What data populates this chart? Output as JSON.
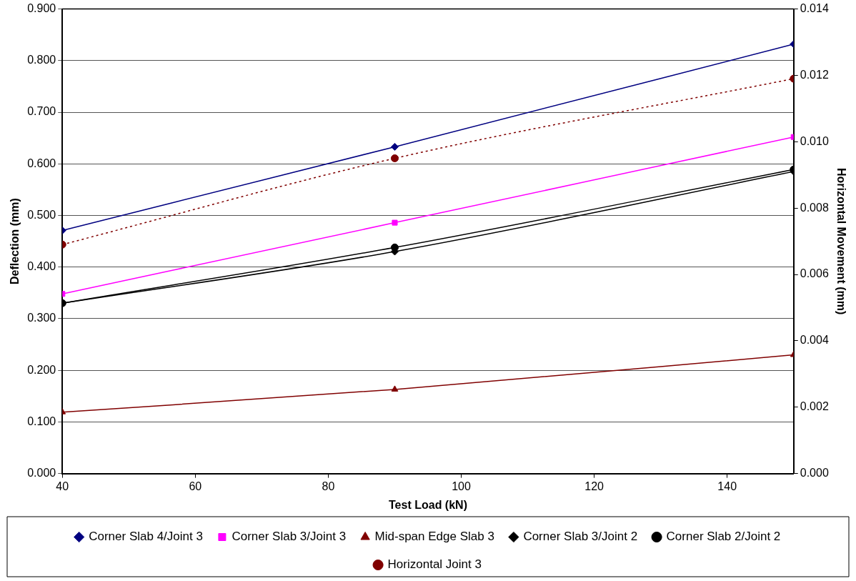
{
  "chart_data": {
    "type": "line",
    "xlabel": "Test Load (kN)",
    "ylabel": "Deflection (mm)",
    "y2label": "Horizontal Movement (mm)",
    "x": [
      40,
      90,
      150
    ],
    "xlim": [
      40,
      150
    ],
    "xticks": [
      40,
      60,
      80,
      100,
      120,
      140
    ],
    "ylim": [
      0,
      0.9
    ],
    "yticks": [
      {
        "value": 0,
        "label": "0.000"
      },
      {
        "value": 0.1,
        "label": "0.100"
      },
      {
        "value": 0.2,
        "label": "0.200"
      },
      {
        "value": 0.3,
        "label": "0.300"
      },
      {
        "value": 0.4,
        "label": "0.400"
      },
      {
        "value": 0.5,
        "label": "0.500"
      },
      {
        "value": 0.6,
        "label": "0.600"
      },
      {
        "value": 0.7,
        "label": "0.700"
      },
      {
        "value": 0.8,
        "label": "0.800"
      },
      {
        "value": 0.9,
        "label": "0.900"
      }
    ],
    "y2lim": [
      0,
      0.014
    ],
    "y2ticks": [
      {
        "value": 0,
        "label": "0.000"
      },
      {
        "value": 0.002,
        "label": "0.002"
      },
      {
        "value": 0.004,
        "label": "0.004"
      },
      {
        "value": 0.006,
        "label": "0.006"
      },
      {
        "value": 0.008,
        "label": "0.008"
      },
      {
        "value": 0.01,
        "label": "0.010"
      },
      {
        "value": 0.012,
        "label": "0.012"
      },
      {
        "value": 0.014,
        "label": "0.014"
      }
    ],
    "grid": "y",
    "legend": "bottom",
    "series": [
      {
        "name": "Corner Slab 4/Joint 3",
        "color": "#000080",
        "marker": "diamond",
        "values": [
          0.471,
          0.633,
          0.832
        ]
      },
      {
        "name": "Corner Slab 3/Joint 3",
        "color": "#ff00ff",
        "marker": "square",
        "values": [
          0.348,
          0.486,
          0.652
        ]
      },
      {
        "name": "Mid-span Edge Slab 3",
        "color": "#800000",
        "marker": "triangle",
        "values": [
          0.119,
          0.163,
          0.23
        ]
      },
      {
        "name": "Corner Slab 3/Joint 2",
        "color": "#000000",
        "marker": "diamond",
        "values": [
          0.33,
          0.43,
          0.585
        ]
      },
      {
        "name": "Corner Slab 2/Joint 2",
        "color": "#000000",
        "marker": "circle",
        "values": [
          0.33,
          0.438,
          0.589
        ]
      },
      {
        "name": "Horizontal Joint 3",
        "color": "#800000",
        "marker": "circle",
        "line_style": "dotted",
        "axis": "y2",
        "values": [
          0.0069,
          0.0095,
          0.0119
        ]
      }
    ]
  }
}
